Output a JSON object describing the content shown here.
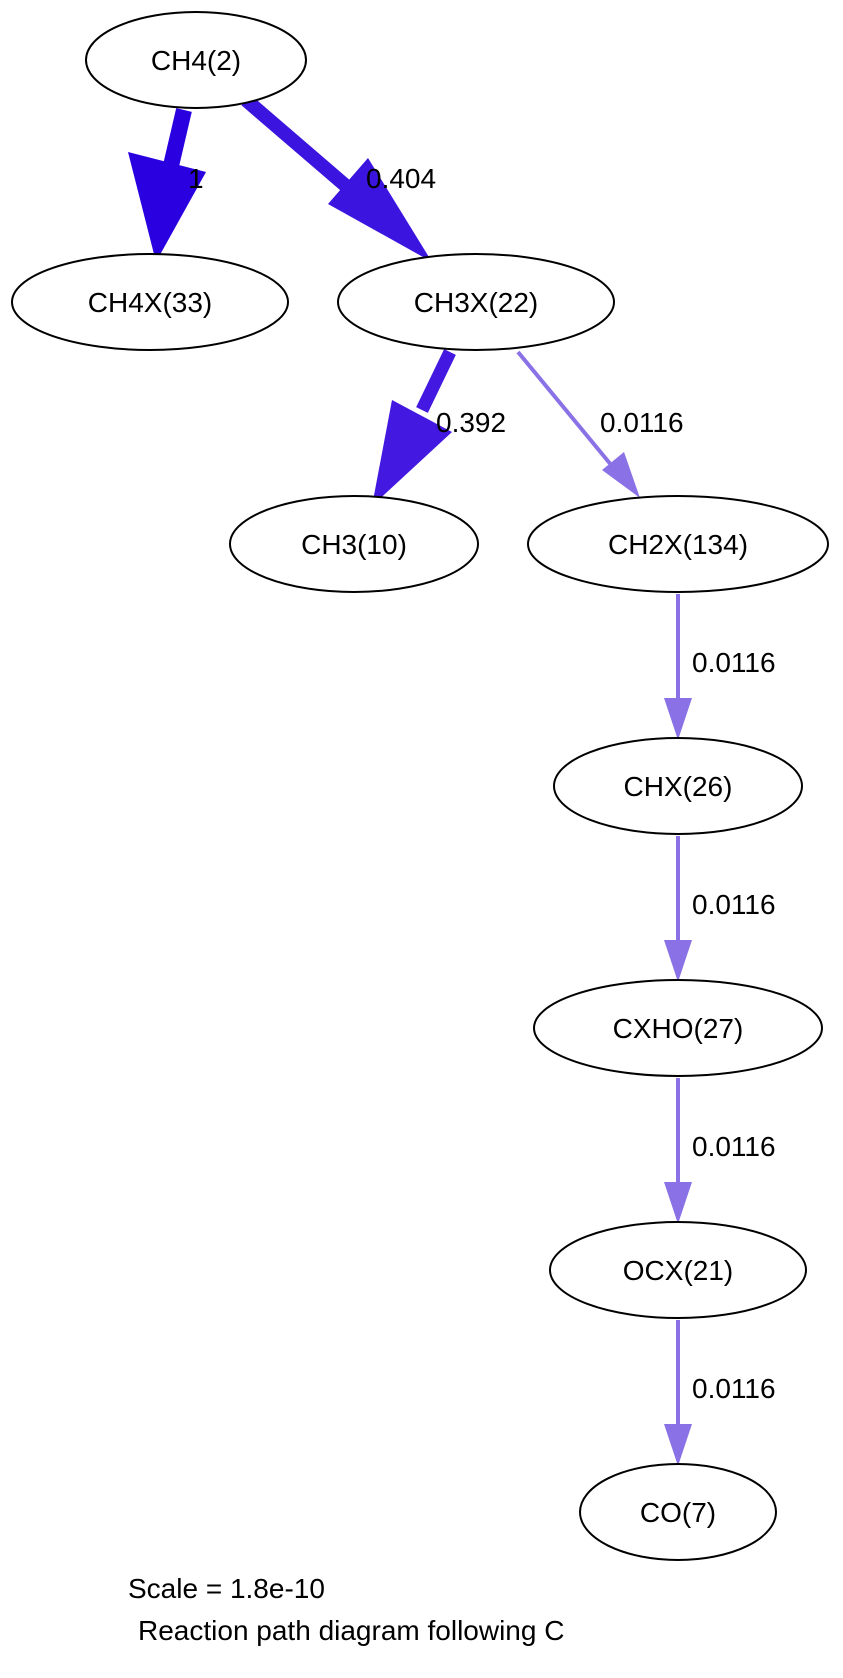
{
  "diagram": {
    "type": "reaction-path",
    "nodes": {
      "ch4": "CH4(2)",
      "ch4x": "CH4X(33)",
      "ch3x": "CH3X(22)",
      "ch3": "CH3(10)",
      "ch2x": "CH2X(134)",
      "chx": "CHX(26)",
      "cxho": "CXHO(27)",
      "ocx": "OCX(21)",
      "co": "CO(7)"
    },
    "edges": [
      {
        "from": "ch4",
        "to": "ch4x",
        "label": "1",
        "color": "#2a00e0"
      },
      {
        "from": "ch4",
        "to": "ch3x",
        "label": "0.404",
        "color": "#3b14e0"
      },
      {
        "from": "ch3x",
        "to": "ch3",
        "label": "0.392",
        "color": "#4318e0"
      },
      {
        "from": "ch3x",
        "to": "ch2x",
        "label": "0.0116",
        "color": "#8a72e6"
      },
      {
        "from": "ch2x",
        "to": "chx",
        "label": "0.0116",
        "color": "#8a72e6"
      },
      {
        "from": "chx",
        "to": "cxho",
        "label": "0.0116",
        "color": "#8a72e6"
      },
      {
        "from": "cxho",
        "to": "ocx",
        "label": "0.0116",
        "color": "#8a72e6"
      },
      {
        "from": "ocx",
        "to": "co",
        "label": "0.0116",
        "color": "#8a72e6"
      }
    ],
    "caption": {
      "scale": "Scale = 1.8e-10",
      "subtitle": "Reaction path diagram following C"
    }
  }
}
